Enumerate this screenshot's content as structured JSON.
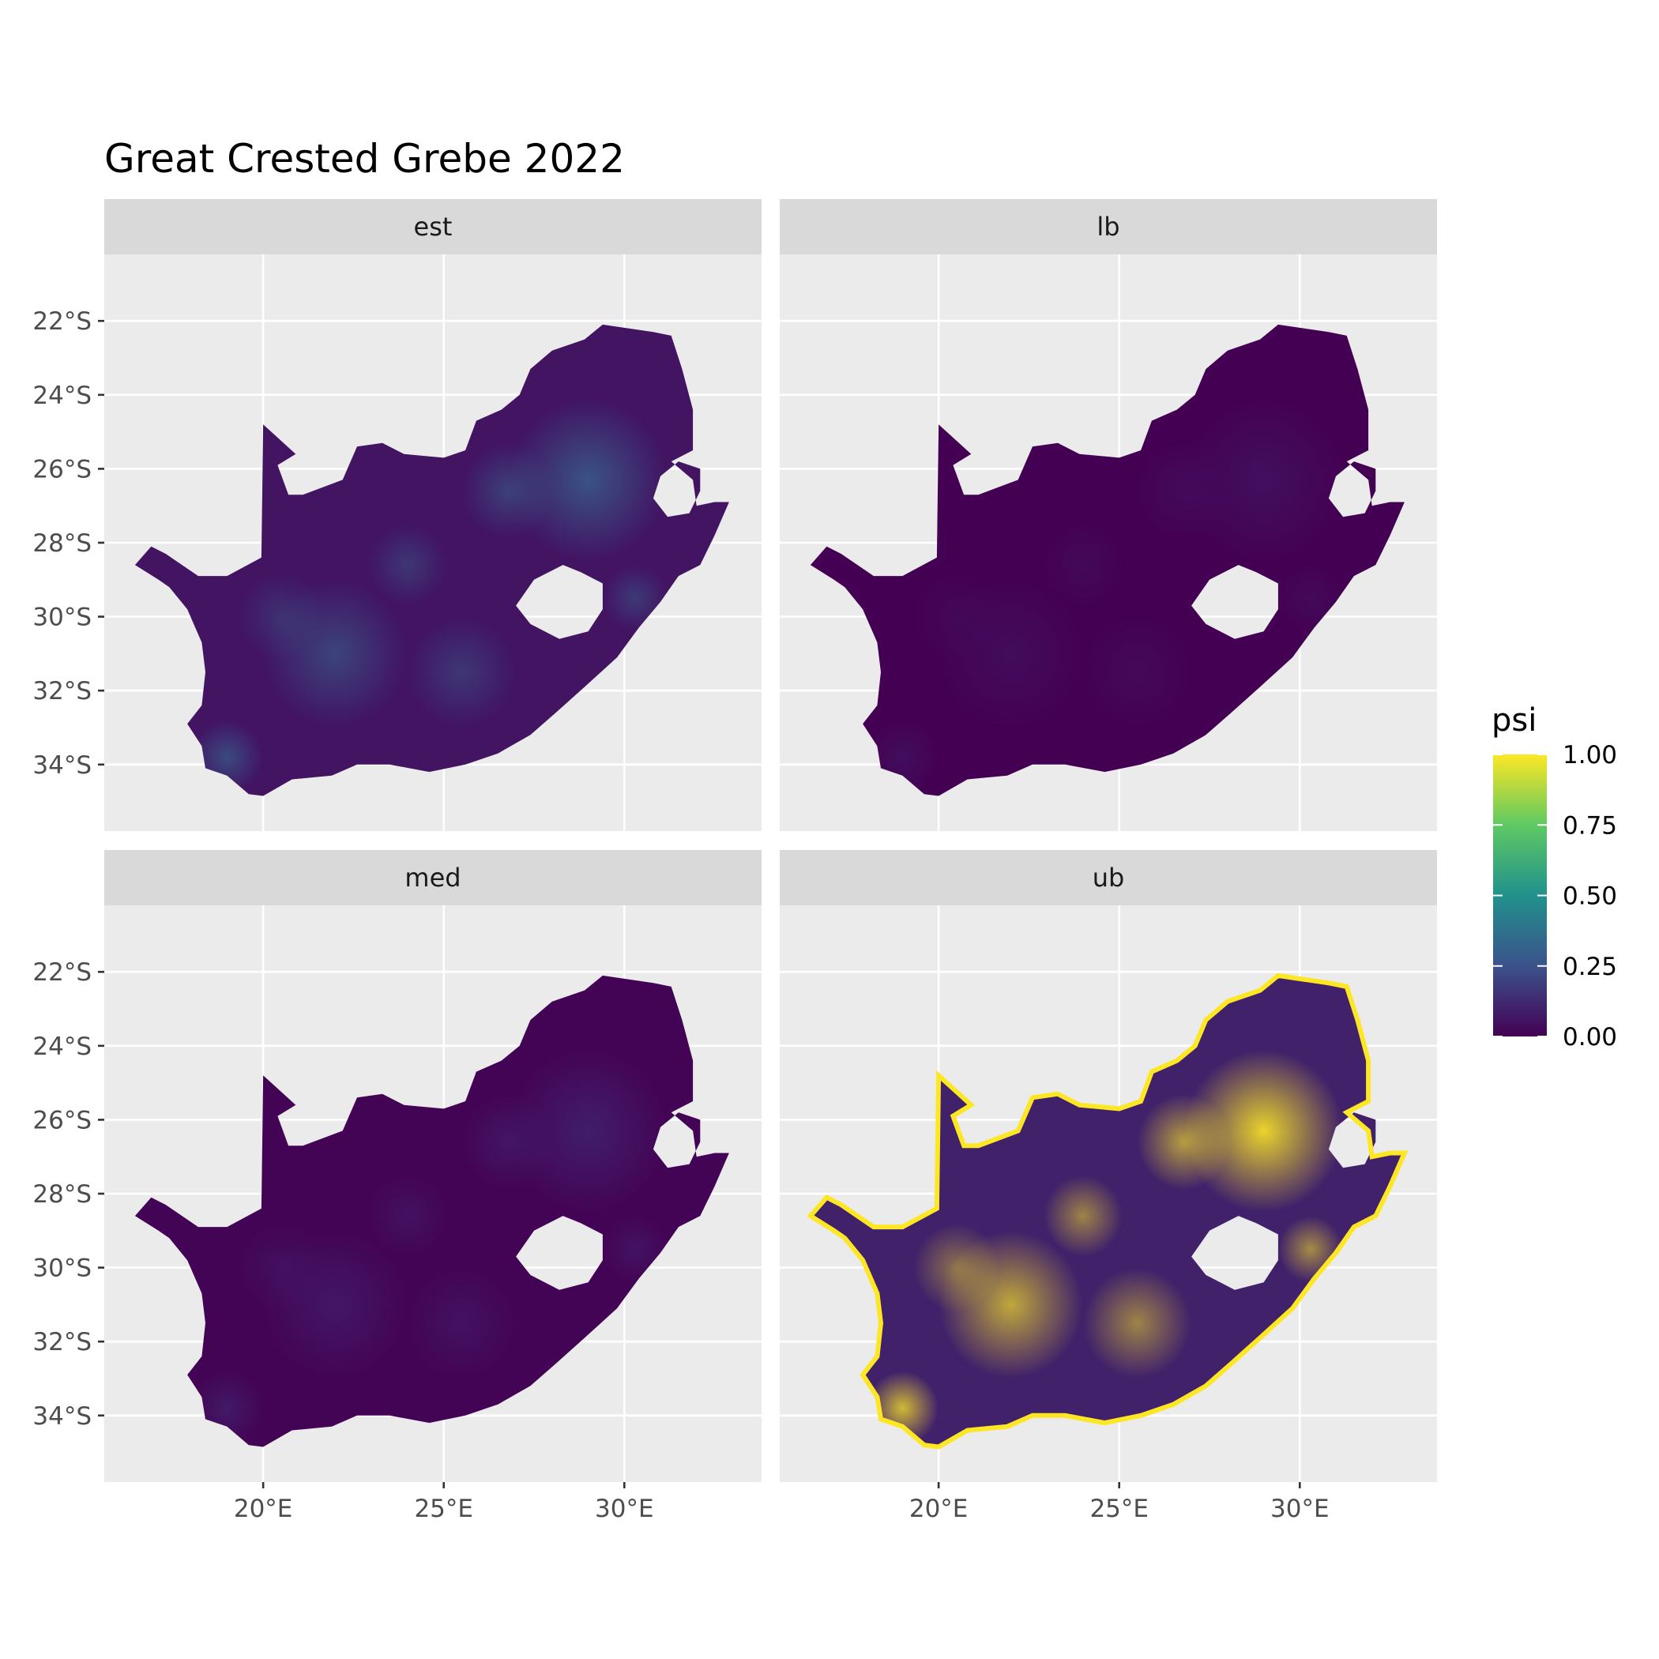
{
  "chart_data": {
    "type": "heatmap",
    "title": "Great Crested Grebe 2022",
    "xlabel": "",
    "ylabel": "",
    "xlim": [
      15.6,
      33.8
    ],
    "ylim": [
      -35.8,
      -20.2
    ],
    "x_ticks": [
      {
        "value": 20,
        "label": "20°E"
      },
      {
        "value": 25,
        "label": "25°E"
      },
      {
        "value": 30,
        "label": "30°E"
      }
    ],
    "y_ticks": [
      {
        "value": -22,
        "label": "22°S"
      },
      {
        "value": -24,
        "label": "24°S"
      },
      {
        "value": -26,
        "label": "26°S"
      },
      {
        "value": -28,
        "label": "28°S"
      },
      {
        "value": -30,
        "label": "30°S"
      },
      {
        "value": -32,
        "label": "32°S"
      },
      {
        "value": -34,
        "label": "34°S"
      }
    ],
    "grid": true,
    "legend": {
      "title": "psi",
      "position": "right",
      "range": [
        0,
        1
      ],
      "ticks": [
        {
          "value": 1.0,
          "label": "1.00"
        },
        {
          "value": 0.75,
          "label": "0.75"
        },
        {
          "value": 0.5,
          "label": "0.50"
        },
        {
          "value": 0.25,
          "label": "0.25"
        },
        {
          "value": 0.0,
          "label": "0.00"
        }
      ],
      "colors": [
        "#440154",
        "#3b528b",
        "#21918c",
        "#5ec962",
        "#fde725"
      ]
    },
    "panels": [
      {
        "label": "est",
        "base_value": 0.06,
        "hotspot_value": 0.28
      },
      {
        "label": "lb",
        "base_value": 0.0,
        "hotspot_value": 0.05
      },
      {
        "label": "med",
        "base_value": 0.01,
        "hotspot_value": 0.1
      },
      {
        "label": "ub",
        "base_value": 0.1,
        "hotspot_value": 1.0
      }
    ],
    "outline": [
      [
        16.45,
        -28.6
      ],
      [
        17.1,
        -29.0
      ],
      [
        17.4,
        -29.2
      ],
      [
        17.9,
        -29.8
      ],
      [
        18.3,
        -30.7
      ],
      [
        18.4,
        -31.5
      ],
      [
        18.3,
        -32.4
      ],
      [
        17.9,
        -32.9
      ],
      [
        18.3,
        -33.5
      ],
      [
        18.4,
        -34.1
      ],
      [
        19.0,
        -34.3
      ],
      [
        19.6,
        -34.8
      ],
      [
        20.0,
        -34.85
      ],
      [
        20.8,
        -34.4
      ],
      [
        21.9,
        -34.3
      ],
      [
        22.6,
        -34.0
      ],
      [
        23.5,
        -34.0
      ],
      [
        24.6,
        -34.2
      ],
      [
        25.6,
        -34.0
      ],
      [
        26.5,
        -33.7
      ],
      [
        27.4,
        -33.2
      ],
      [
        28.1,
        -32.6
      ],
      [
        28.9,
        -31.9
      ],
      [
        29.8,
        -31.1
      ],
      [
        30.4,
        -30.3
      ],
      [
        31.0,
        -29.6
      ],
      [
        31.5,
        -28.9
      ],
      [
        32.1,
        -28.6
      ],
      [
        32.5,
        -27.8
      ],
      [
        32.9,
        -26.9
      ],
      [
        32.5,
        -26.9
      ],
      [
        32.0,
        -27.0
      ],
      [
        31.9,
        -26.3
      ],
      [
        31.3,
        -25.8
      ],
      [
        31.9,
        -25.5
      ],
      [
        31.9,
        -24.4
      ],
      [
        31.6,
        -23.3
      ],
      [
        31.3,
        -22.4
      ],
      [
        30.8,
        -22.3
      ],
      [
        29.4,
        -22.1
      ],
      [
        28.9,
        -22.5
      ],
      [
        28.0,
        -22.8
      ],
      [
        27.4,
        -23.3
      ],
      [
        27.1,
        -24.0
      ],
      [
        26.6,
        -24.4
      ],
      [
        25.9,
        -24.7
      ],
      [
        25.6,
        -25.5
      ],
      [
        25.0,
        -25.7
      ],
      [
        23.9,
        -25.6
      ],
      [
        23.3,
        -25.3
      ],
      [
        22.6,
        -25.4
      ],
      [
        22.2,
        -26.3
      ],
      [
        21.1,
        -26.7
      ],
      [
        20.7,
        -26.7
      ],
      [
        20.4,
        -25.9
      ],
      [
        20.9,
        -25.6
      ],
      [
        20.0,
        -24.8
      ],
      [
        19.95,
        -28.4
      ],
      [
        19.0,
        -28.9
      ],
      [
        18.2,
        -28.9
      ],
      [
        17.3,
        -28.3
      ],
      [
        16.9,
        -28.1
      ]
    ],
    "holes": [
      [
        [
          27.0,
          -29.7
        ],
        [
          27.5,
          -29.0
        ],
        [
          28.3,
          -28.6
        ],
        [
          28.8,
          -28.8
        ],
        [
          29.4,
          -29.1
        ],
        [
          29.4,
          -29.8
        ],
        [
          29.0,
          -30.4
        ],
        [
          28.2,
          -30.6
        ],
        [
          27.4,
          -30.2
        ]
      ],
      [
        [
          30.8,
          -26.8
        ],
        [
          31.0,
          -26.2
        ],
        [
          31.5,
          -25.8
        ],
        [
          32.1,
          -26.0
        ],
        [
          32.1,
          -26.6
        ],
        [
          31.8,
          -27.2
        ],
        [
          31.2,
          -27.3
        ]
      ]
    ]
  }
}
